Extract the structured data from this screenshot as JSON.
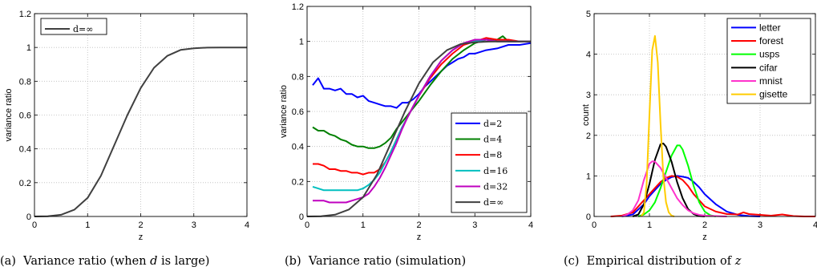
{
  "chart_data": [
    {
      "type": "line",
      "xlabel": "z",
      "ylabel": "variance ratio",
      "xlim": [
        0,
        4
      ],
      "ylim": [
        0,
        1.2
      ],
      "xticks": [
        "0",
        "1",
        "2",
        "3",
        "4"
      ],
      "yticks": [
        "0",
        "0.2",
        "0.4",
        "0.6",
        "0.8",
        "1",
        "1.2"
      ],
      "grid": true,
      "legend_position": "top-left",
      "caption": {
        "prefix": "(a)  Variance ratio (when ",
        "var": "d",
        "suffix": " is large)"
      },
      "series": [
        {
          "name": "d=∞",
          "color": "#404040",
          "x": [
            0,
            0.25,
            0.5,
            0.75,
            1.0,
            1.25,
            1.5,
            1.75,
            2.0,
            2.25,
            2.5,
            2.75,
            3.0,
            3.25,
            3.5,
            3.75,
            4.0
          ],
          "y": [
            0,
            0.001,
            0.01,
            0.04,
            0.11,
            0.24,
            0.42,
            0.6,
            0.76,
            0.88,
            0.95,
            0.985,
            0.995,
            0.999,
            1.0,
            1.0,
            1.0
          ]
        }
      ]
    },
    {
      "type": "line",
      "xlabel": "z",
      "ylabel": "variance ratio",
      "xlim": [
        0,
        4
      ],
      "ylim": [
        0,
        1.2
      ],
      "xticks": [
        "0",
        "1",
        "2",
        "3",
        "4"
      ],
      "yticks": [
        "0",
        "0.2",
        "0.4",
        "0.6",
        "0.8",
        "1",
        "1.2"
      ],
      "grid": true,
      "legend_position": "center-right",
      "caption": {
        "prefix": "(b)  Variance ratio (simulation)",
        "var": "",
        "suffix": ""
      },
      "series": [
        {
          "name": "d=2",
          "color": "#0000ff",
          "x": [
            0.1,
            0.2,
            0.3,
            0.4,
            0.5,
            0.6,
            0.7,
            0.8,
            0.9,
            1.0,
            1.1,
            1.2,
            1.3,
            1.4,
            1.5,
            1.6,
            1.7,
            1.8,
            1.9,
            2.0,
            2.1,
            2.2,
            2.3,
            2.4,
            2.5,
            2.6,
            2.7,
            2.8,
            2.9,
            3.0,
            3.2,
            3.4,
            3.6,
            3.8,
            4.0
          ],
          "y": [
            0.75,
            0.79,
            0.73,
            0.73,
            0.72,
            0.73,
            0.7,
            0.7,
            0.68,
            0.69,
            0.66,
            0.65,
            0.64,
            0.63,
            0.63,
            0.62,
            0.65,
            0.65,
            0.67,
            0.7,
            0.74,
            0.77,
            0.8,
            0.83,
            0.86,
            0.88,
            0.9,
            0.91,
            0.93,
            0.93,
            0.95,
            0.96,
            0.98,
            0.98,
            0.99
          ]
        },
        {
          "name": "d=4",
          "color": "#008000",
          "x": [
            0.1,
            0.2,
            0.3,
            0.4,
            0.5,
            0.6,
            0.7,
            0.8,
            0.9,
            1.0,
            1.1,
            1.2,
            1.3,
            1.4,
            1.5,
            1.6,
            1.7,
            1.8,
            1.9,
            2.0,
            2.2,
            2.4,
            2.6,
            2.8,
            3.0,
            3.2,
            3.4,
            3.5,
            3.6,
            3.8,
            4.0
          ],
          "y": [
            0.51,
            0.49,
            0.49,
            0.47,
            0.46,
            0.44,
            0.43,
            0.41,
            0.4,
            0.4,
            0.39,
            0.39,
            0.4,
            0.42,
            0.45,
            0.5,
            0.54,
            0.58,
            0.62,
            0.66,
            0.75,
            0.83,
            0.9,
            0.95,
            0.99,
            1.01,
            1.01,
            1.03,
            1.0,
            1.0,
            1.0
          ]
        },
        {
          "name": "d=8",
          "color": "#ff0000",
          "x": [
            0.1,
            0.2,
            0.3,
            0.4,
            0.5,
            0.6,
            0.7,
            0.8,
            0.9,
            1.0,
            1.1,
            1.2,
            1.3,
            1.4,
            1.5,
            1.6,
            1.7,
            1.8,
            1.9,
            2.0,
            2.2,
            2.4,
            2.6,
            2.8,
            3.0,
            3.2,
            3.4,
            3.6,
            3.8,
            4.0
          ],
          "y": [
            0.3,
            0.3,
            0.29,
            0.27,
            0.27,
            0.26,
            0.26,
            0.25,
            0.25,
            0.24,
            0.25,
            0.25,
            0.27,
            0.31,
            0.37,
            0.44,
            0.51,
            0.57,
            0.63,
            0.69,
            0.79,
            0.87,
            0.93,
            0.98,
            1.0,
            1.02,
            1.01,
            1.01,
            1.0,
            1.0
          ]
        },
        {
          "name": "d=16",
          "color": "#00bfbf",
          "x": [
            0.1,
            0.2,
            0.3,
            0.4,
            0.5,
            0.6,
            0.7,
            0.8,
            0.9,
            1.0,
            1.1,
            1.2,
            1.3,
            1.4,
            1.5,
            1.6,
            1.7,
            1.8,
            1.9,
            2.0,
            2.2,
            2.4,
            2.6,
            2.8,
            3.0,
            3.2,
            3.4,
            3.6,
            3.8,
            4.0
          ],
          "y": [
            0.17,
            0.16,
            0.15,
            0.15,
            0.15,
            0.15,
            0.15,
            0.15,
            0.15,
            0.16,
            0.18,
            0.21,
            0.25,
            0.31,
            0.37,
            0.44,
            0.51,
            0.57,
            0.63,
            0.69,
            0.8,
            0.89,
            0.95,
            0.99,
            1.0,
            1.01,
            1.0,
            1.0,
            1.0,
            1.0
          ]
        },
        {
          "name": "d=32",
          "color": "#bf00bf",
          "x": [
            0.1,
            0.2,
            0.3,
            0.4,
            0.5,
            0.6,
            0.7,
            0.8,
            0.9,
            1.0,
            1.1,
            1.2,
            1.3,
            1.4,
            1.5,
            1.6,
            1.7,
            1.8,
            1.9,
            2.0,
            2.2,
            2.4,
            2.6,
            2.8,
            3.0,
            3.2,
            3.4,
            3.6,
            3.8,
            4.0
          ],
          "y": [
            0.09,
            0.09,
            0.09,
            0.08,
            0.08,
            0.08,
            0.08,
            0.09,
            0.1,
            0.11,
            0.13,
            0.17,
            0.22,
            0.28,
            0.35,
            0.42,
            0.5,
            0.57,
            0.63,
            0.69,
            0.8,
            0.89,
            0.95,
            0.99,
            1.01,
            1.01,
            1.0,
            1.0,
            1.0,
            1.0
          ]
        },
        {
          "name": "d=∞",
          "color": "#404040",
          "x": [
            0,
            0.25,
            0.5,
            0.75,
            1.0,
            1.25,
            1.5,
            1.75,
            2.0,
            2.25,
            2.5,
            2.75,
            3.0,
            3.25,
            3.5,
            3.75,
            4.0
          ],
          "y": [
            0,
            0.001,
            0.01,
            0.04,
            0.11,
            0.24,
            0.42,
            0.6,
            0.76,
            0.88,
            0.95,
            0.985,
            0.995,
            0.999,
            1.0,
            1.0,
            1.0
          ]
        }
      ]
    },
    {
      "type": "line",
      "xlabel": "z",
      "ylabel": "count",
      "xlim": [
        0,
        4
      ],
      "ylim": [
        0,
        5
      ],
      "xticks": [
        "0",
        "1",
        "2",
        "3",
        "4"
      ],
      "yticks": [
        "0",
        "1",
        "2",
        "3",
        "4",
        "5"
      ],
      "grid": true,
      "legend_position": "top-right",
      "caption": {
        "prefix": "(c)  Empirical distribution of ",
        "var": "z",
        "suffix": ""
      },
      "series": [
        {
          "name": "letter",
          "color": "#0000ff",
          "x": [
            0.5,
            0.7,
            0.9,
            1.0,
            1.1,
            1.2,
            1.3,
            1.4,
            1.5,
            1.6,
            1.7,
            1.8,
            1.9,
            2.0,
            2.2,
            2.4,
            2.6,
            2.8,
            3.0
          ],
          "y": [
            0.0,
            0.05,
            0.3,
            0.5,
            0.65,
            0.8,
            0.9,
            0.97,
            1.0,
            0.98,
            0.95,
            0.85,
            0.72,
            0.55,
            0.3,
            0.12,
            0.04,
            0.01,
            0.0
          ]
        },
        {
          "name": "forest",
          "color": "#ff0000",
          "x": [
            0.3,
            0.5,
            0.7,
            0.8,
            0.9,
            1.0,
            1.1,
            1.2,
            1.3,
            1.4,
            1.5,
            1.6,
            1.7,
            1.8,
            1.9,
            2.0,
            2.2,
            2.4,
            2.6,
            2.7,
            2.8,
            3.0,
            3.2,
            3.4,
            3.6,
            3.8,
            4.0
          ],
          "y": [
            0.0,
            0.02,
            0.1,
            0.25,
            0.4,
            0.55,
            0.7,
            0.85,
            0.95,
            1.0,
            0.98,
            0.9,
            0.75,
            0.55,
            0.4,
            0.25,
            0.12,
            0.06,
            0.05,
            0.1,
            0.06,
            0.04,
            0.02,
            0.05,
            0.01,
            0.0,
            0.0
          ]
        },
        {
          "name": "usps",
          "color": "#00ff00",
          "x": [
            0.8,
            0.9,
            1.0,
            1.1,
            1.2,
            1.3,
            1.4,
            1.5,
            1.55,
            1.6,
            1.7,
            1.8,
            1.9,
            2.0,
            2.1,
            2.2
          ],
          "y": [
            0.0,
            0.05,
            0.15,
            0.35,
            0.7,
            1.1,
            1.5,
            1.75,
            1.75,
            1.65,
            1.25,
            0.75,
            0.35,
            0.12,
            0.03,
            0.0
          ]
        },
        {
          "name": "cifar",
          "color": "#000000",
          "x": [
            0.7,
            0.8,
            0.9,
            1.0,
            1.1,
            1.2,
            1.25,
            1.3,
            1.4,
            1.5,
            1.6,
            1.7,
            1.8,
            1.9,
            2.0
          ],
          "y": [
            0.0,
            0.05,
            0.3,
            0.8,
            1.4,
            1.78,
            1.8,
            1.72,
            1.35,
            0.85,
            0.45,
            0.18,
            0.06,
            0.01,
            0.0
          ]
        },
        {
          "name": "mnist",
          "color": "#ff33cc",
          "x": [
            0.5,
            0.6,
            0.7,
            0.8,
            0.9,
            1.0,
            1.05,
            1.1,
            1.2,
            1.3,
            1.4,
            1.5,
            1.6,
            1.7,
            1.8,
            1.9,
            2.0,
            2.2,
            2.4
          ],
          "y": [
            0.0,
            0.05,
            0.15,
            0.4,
            0.9,
            1.3,
            1.36,
            1.35,
            1.2,
            0.95,
            0.7,
            0.45,
            0.28,
            0.15,
            0.08,
            0.04,
            0.02,
            0.01,
            0.0
          ]
        },
        {
          "name": "gisette",
          "color": "#ffcc00",
          "x": [
            0.85,
            0.9,
            0.95,
            1.0,
            1.05,
            1.1,
            1.15,
            1.2,
            1.25,
            1.3,
            1.35,
            1.4,
            1.45
          ],
          "y": [
            0.0,
            0.1,
            0.8,
            2.5,
            4.1,
            4.45,
            3.8,
            2.3,
            1.0,
            0.35,
            0.1,
            0.02,
            0.0
          ]
        }
      ]
    }
  ]
}
